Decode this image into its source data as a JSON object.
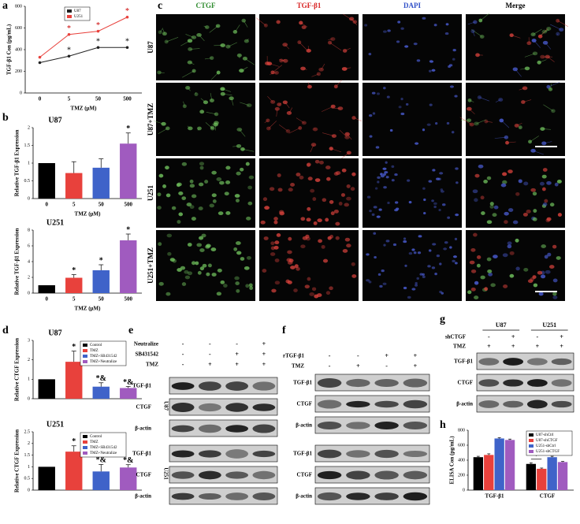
{
  "panel_labels": [
    "a",
    "b",
    "c",
    "d",
    "e",
    "f",
    "g",
    "h"
  ],
  "chart_data": [
    {
      "type": "line",
      "ylabel": "TGF-β1 Con (pg/mL)",
      "xlabel": "TMZ (μM)",
      "categories": [
        "0",
        "5",
        "50",
        "500"
      ],
      "ylim": [
        0,
        800
      ],
      "yticks": [
        0,
        200,
        400,
        600,
        800
      ],
      "legend": "upper-center",
      "series": [
        {
          "name": "U87",
          "color": "#222222",
          "values": [
            280,
            340,
            420,
            420
          ],
          "annotations": [
            null,
            "*",
            "*",
            "*"
          ]
        },
        {
          "name": "U251",
          "color": "#e8413c",
          "values": [
            330,
            540,
            570,
            700
          ],
          "annotations": [
            null,
            "*",
            "*",
            "*"
          ]
        }
      ]
    },
    {
      "type": "bar",
      "title": "U87",
      "ylabel": "Relative TGF-β1 Expression",
      "xlabel": "TMZ (μM)",
      "categories": [
        "0",
        "5",
        "50",
        "500"
      ],
      "values": [
        1.0,
        0.72,
        0.87,
        1.55
      ],
      "errors": [
        0,
        0.32,
        0.25,
        0.3
      ],
      "colors": [
        "#000000",
        "#e8413c",
        "#3f63c9",
        "#a05bbf"
      ],
      "annotations": [
        null,
        null,
        null,
        "*"
      ],
      "ylim": [
        0,
        2
      ],
      "yticks": [
        0,
        0.5,
        1,
        1.5,
        2
      ]
    },
    {
      "type": "bar",
      "title": "U251",
      "ylabel": "Relative TGF-β1 Expression",
      "xlabel": "TMZ (μM)",
      "categories": [
        "0",
        "5",
        "50",
        "500"
      ],
      "values": [
        1.0,
        1.95,
        2.9,
        6.7
      ],
      "errors": [
        0,
        0.4,
        0.7,
        0.8
      ],
      "colors": [
        "#000000",
        "#e8413c",
        "#3f63c9",
        "#a05bbf"
      ],
      "annotations": [
        null,
        "*",
        "*",
        "*"
      ],
      "ylim": [
        0,
        8
      ],
      "yticks": [
        0,
        2,
        4,
        6,
        8
      ]
    },
    {
      "type": "bar",
      "title": "U87",
      "ylabel": "Relative CTGF Expression",
      "categories": [
        "Control",
        "TMZ",
        "TMZ+SB431542",
        "TMZ+Neutralize"
      ],
      "values": [
        1.0,
        1.9,
        0.62,
        0.55
      ],
      "errors": [
        0,
        0.55,
        0.2,
        0.08
      ],
      "colors": [
        "#000000",
        "#e8413c",
        "#3f63c9",
        "#a05bbf"
      ],
      "annotations": [
        null,
        "*",
        "*&",
        "*&"
      ],
      "ylim": [
        0,
        3
      ],
      "yticks": [
        0,
        1,
        2,
        3
      ],
      "legend": "upper-left"
    },
    {
      "type": "bar",
      "title": "U251",
      "ylabel": "Relative CTGF Expression",
      "categories": [
        "Control",
        "TMZ",
        "TMZ+SB431542",
        "TMZ+Neutralize"
      ],
      "values": [
        1.0,
        1.65,
        0.8,
        0.97
      ],
      "errors": [
        0,
        0.25,
        0.3,
        0.12
      ],
      "colors": [
        "#000000",
        "#e8413c",
        "#3f63c9",
        "#a05bbf"
      ],
      "annotations": [
        null,
        "*",
        "*&",
        "*&"
      ],
      "ylim": [
        0,
        2.5
      ],
      "yticks": [
        0,
        0.5,
        1,
        1.5,
        2,
        2.5
      ],
      "legend": "upper-left"
    },
    {
      "type": "bar",
      "ylabel": "ELISA Con (pg/mL)",
      "categories": [
        "TGF-β1",
        "CTGF"
      ],
      "ylim": [
        0,
        800
      ],
      "yticks": [
        0,
        200,
        400,
        600,
        800
      ],
      "legend": "upper-right",
      "annotations": [
        "*",
        "*"
      ],
      "series": [
        {
          "name": "U87-shCtrl",
          "color": "#000000",
          "values": [
            440,
            350
          ],
          "errors": [
            12,
            15
          ]
        },
        {
          "name": "U87-shCTGF",
          "color": "#e8413c",
          "values": [
            470,
            285
          ],
          "errors": [
            15,
            10
          ]
        },
        {
          "name": "U251-shCtrl",
          "color": "#3f63c9",
          "values": [
            690,
            440
          ],
          "errors": [
            10,
            12
          ]
        },
        {
          "name": "U251-shCTGF",
          "color": "#a05bbf",
          "values": [
            670,
            375
          ],
          "errors": [
            12,
            8
          ]
        }
      ]
    }
  ],
  "immunofluorescence": {
    "columns": [
      "CTGF",
      "TGF-β1",
      "DAPI",
      "Merge"
    ],
    "rows": [
      "U87",
      "U87+TMZ",
      "U251",
      "U251+TMZ"
    ]
  },
  "blots": [
    {
      "conditions": [
        {
          "name": "Neutralize",
          "signs": [
            "-",
            "-",
            "-",
            "+"
          ]
        },
        {
          "name": "SB431542",
          "signs": [
            "-",
            "-",
            "+",
            "+"
          ]
        },
        {
          "name": "TMZ",
          "signs": [
            "-",
            "+",
            "+",
            "+"
          ]
        }
      ],
      "sections": [
        {
          "name": "U87",
          "bands": [
            "TGF-β1",
            "CTGF",
            "β-actin"
          ]
        },
        {
          "name": "U251",
          "bands": [
            "TGF-β1",
            "CTGF",
            "β-actin"
          ]
        }
      ]
    },
    {
      "conditions": [
        {
          "name": "rTGF-β1",
          "signs": [
            "-",
            "-",
            "+",
            "+"
          ]
        },
        {
          "name": "TMZ",
          "signs": [
            "-",
            "+",
            "-",
            "+"
          ]
        }
      ],
      "sections": [
        {
          "bands": [
            "TGF-β1",
            "CTGF",
            "β-actin"
          ]
        },
        {
          "bands": [
            "TGF-β1",
            "CTGF",
            "β-actin"
          ]
        }
      ]
    },
    {
      "groups": [
        "U87",
        "U251"
      ],
      "conditions": [
        {
          "name": "shCTGF",
          "signs": [
            "-",
            "+",
            "-",
            "+"
          ]
        },
        {
          "name": "TMZ",
          "signs": [
            "+",
            "+",
            "+",
            "+"
          ]
        }
      ],
      "sections": [
        {
          "bands": [
            "TGF-β1",
            "CTGF",
            "β-actin"
          ]
        }
      ]
    }
  ]
}
